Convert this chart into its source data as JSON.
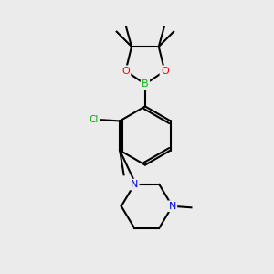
{
  "background_color": "#ebebeb",
  "bond_color": "#000000",
  "atom_colors": {
    "B": "#00bb00",
    "O": "#ff0000",
    "N": "#0000ee",
    "Cl": "#00aa00",
    "C": "#000000"
  },
  "figsize": [
    3.0,
    3.0
  ],
  "dpi": 100,
  "lw": 1.5
}
